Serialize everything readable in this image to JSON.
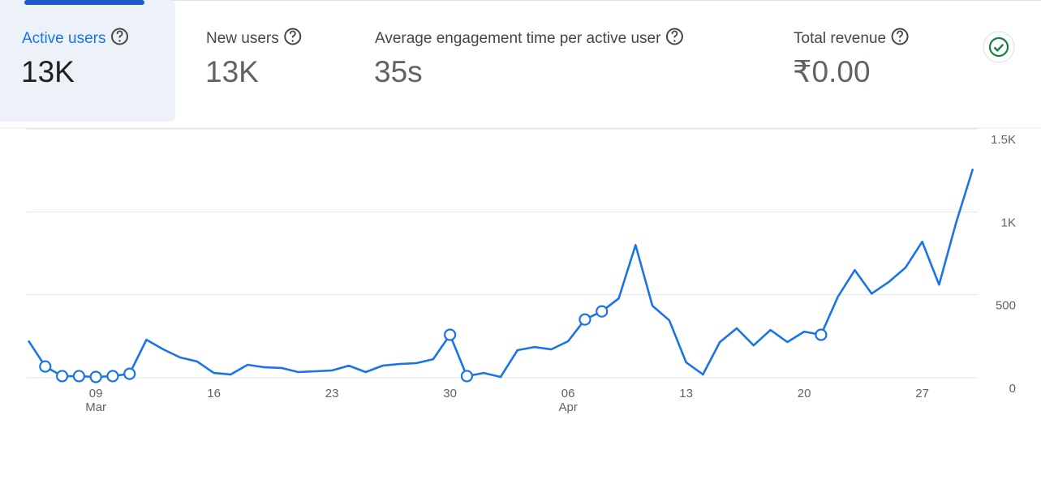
{
  "cards": [
    {
      "label": "Active users",
      "value": "13K"
    },
    {
      "label": "New users",
      "value": "13K"
    },
    {
      "label": "Average engagement time per active user",
      "value": "35s"
    },
    {
      "label": "Total revenue",
      "value": "₹0.00"
    }
  ],
  "chart_data": {
    "type": "line",
    "color": "#1a73e8",
    "categories": [
      null,
      null,
      null,
      null,
      "09",
      null,
      null,
      null,
      null,
      null,
      null,
      "16",
      null,
      null,
      null,
      null,
      null,
      null,
      "23",
      null,
      null,
      null,
      null,
      null,
      null,
      "30",
      null,
      null,
      null,
      null,
      null,
      null,
      "06",
      null,
      null,
      null,
      null,
      null,
      null,
      "13",
      null,
      null,
      null,
      null,
      null,
      null,
      "20",
      null,
      null,
      null,
      null,
      null,
      null,
      "27",
      null,
      null,
      null
    ],
    "category_months": [
      null,
      null,
      null,
      null,
      "Mar",
      null,
      null,
      null,
      null,
      null,
      null,
      null,
      null,
      null,
      null,
      null,
      null,
      null,
      null,
      null,
      null,
      null,
      null,
      null,
      null,
      null,
      null,
      null,
      null,
      null,
      null,
      null,
      "Apr",
      null,
      null,
      null,
      null,
      null,
      null,
      null,
      null,
      null,
      null,
      null,
      null,
      null,
      null,
      null,
      null,
      null,
      null,
      null,
      null,
      null,
      null,
      null,
      null
    ],
    "values": [
      224,
      68,
      10,
      10,
      5,
      10,
      24,
      229,
      171,
      122,
      98,
      29,
      20,
      78,
      63,
      59,
      34,
      39,
      44,
      73,
      34,
      73,
      83,
      88,
      112,
      259,
      10,
      29,
      5,
      166,
      185,
      171,
      220,
      351,
      400,
      478,
      800,
      434,
      346,
      93,
      20,
      215,
      298,
      195,
      288,
      215,
      278,
      259,
      488,
      649,
      507,
      576,
      663,
      820,
      561,
      932,
      1259
    ],
    "anomaly": [
      false,
      true,
      true,
      true,
      true,
      true,
      true,
      false,
      false,
      false,
      false,
      false,
      false,
      false,
      false,
      false,
      false,
      false,
      false,
      false,
      false,
      false,
      false,
      false,
      false,
      true,
      true,
      false,
      false,
      false,
      false,
      false,
      false,
      true,
      true,
      false,
      false,
      false,
      false,
      false,
      false,
      false,
      false,
      false,
      false,
      false,
      false,
      true,
      false,
      false,
      false,
      false,
      false,
      false,
      false,
      false,
      false
    ],
    "ylim": [
      0,
      1500
    ],
    "yticks": [
      0,
      500,
      {
        "value": 1000,
        "label": "1K"
      },
      {
        "value": 1500,
        "label": "1.5K"
      }
    ],
    "grid": true
  }
}
